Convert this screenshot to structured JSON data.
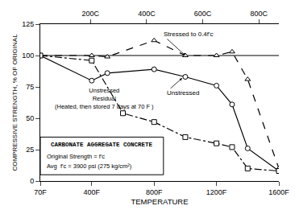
{
  "chart_data": {
    "type": "line",
    "xlabel": "TEMPERATURE",
    "ylabel": "COMPRESSIVE STRENGTH, % OF ORIGINAL",
    "series": [
      {
        "x": [
          70,
          400,
          500,
          800,
          1000,
          1200,
          1300,
          1400,
          1600
        ],
        "values": [
          100,
          100,
          99,
          112,
          100,
          100,
          103,
          81,
          10
        ],
        "color": "black",
        "line_style": "dashed",
        "marker": "triangle-up"
      },
      {
        "x": [
          70,
          400,
          500,
          800,
          1000,
          1200,
          1300,
          1400,
          1600
        ],
        "values": [
          100,
          80,
          86,
          89,
          83,
          76,
          61,
          26,
          8
        ],
        "color": "black",
        "line_style": "solid",
        "marker": "circle"
      },
      {
        "x": [
          70,
          400,
          600,
          800,
          1000,
          1200,
          1300,
          1400,
          1600
        ],
        "values": [
          100,
          96,
          54,
          47,
          35,
          30,
          27,
          10,
          8
        ],
        "color": "black",
        "line_style": "dashdot",
        "marker": "square"
      }
    ],
    "xlim": [
      70,
      1600
    ],
    "xticks": [
      {
        "value": 70,
        "label": "70F"
      },
      {
        "value": 400,
        "label": "400F"
      },
      {
        "value": 800,
        "label": "800F"
      },
      {
        "value": 1200,
        "label": "1200F"
      },
      {
        "value": 1600,
        "label": "1600F"
      }
    ],
    "x2lim": [
      70,
      1600
    ],
    "x2ticks": [
      {
        "value": 392,
        "label": "200C"
      },
      {
        "value": 752,
        "label": "400C"
      },
      {
        "value": 1112,
        "label": "600C"
      },
      {
        "value": 1472,
        "label": "800C"
      }
    ],
    "ylim": [
      0,
      125
    ],
    "yticks": [
      0,
      25,
      50,
      75,
      100,
      125
    ],
    "hline": 100,
    "annotations": [
      "Stressed to 0.4f'c",
      "Unstressed",
      "Unstressed",
      "Residual",
      "(Heated, then stored 7 days at 70 F )"
    ],
    "box_text": [
      "CARBONATE AGGREGATE CONCRETE",
      "Original Strength = f'c",
      "Avg  f'c = 3900 psi (275 kg/cm²)"
    ],
    "grid": false
  }
}
